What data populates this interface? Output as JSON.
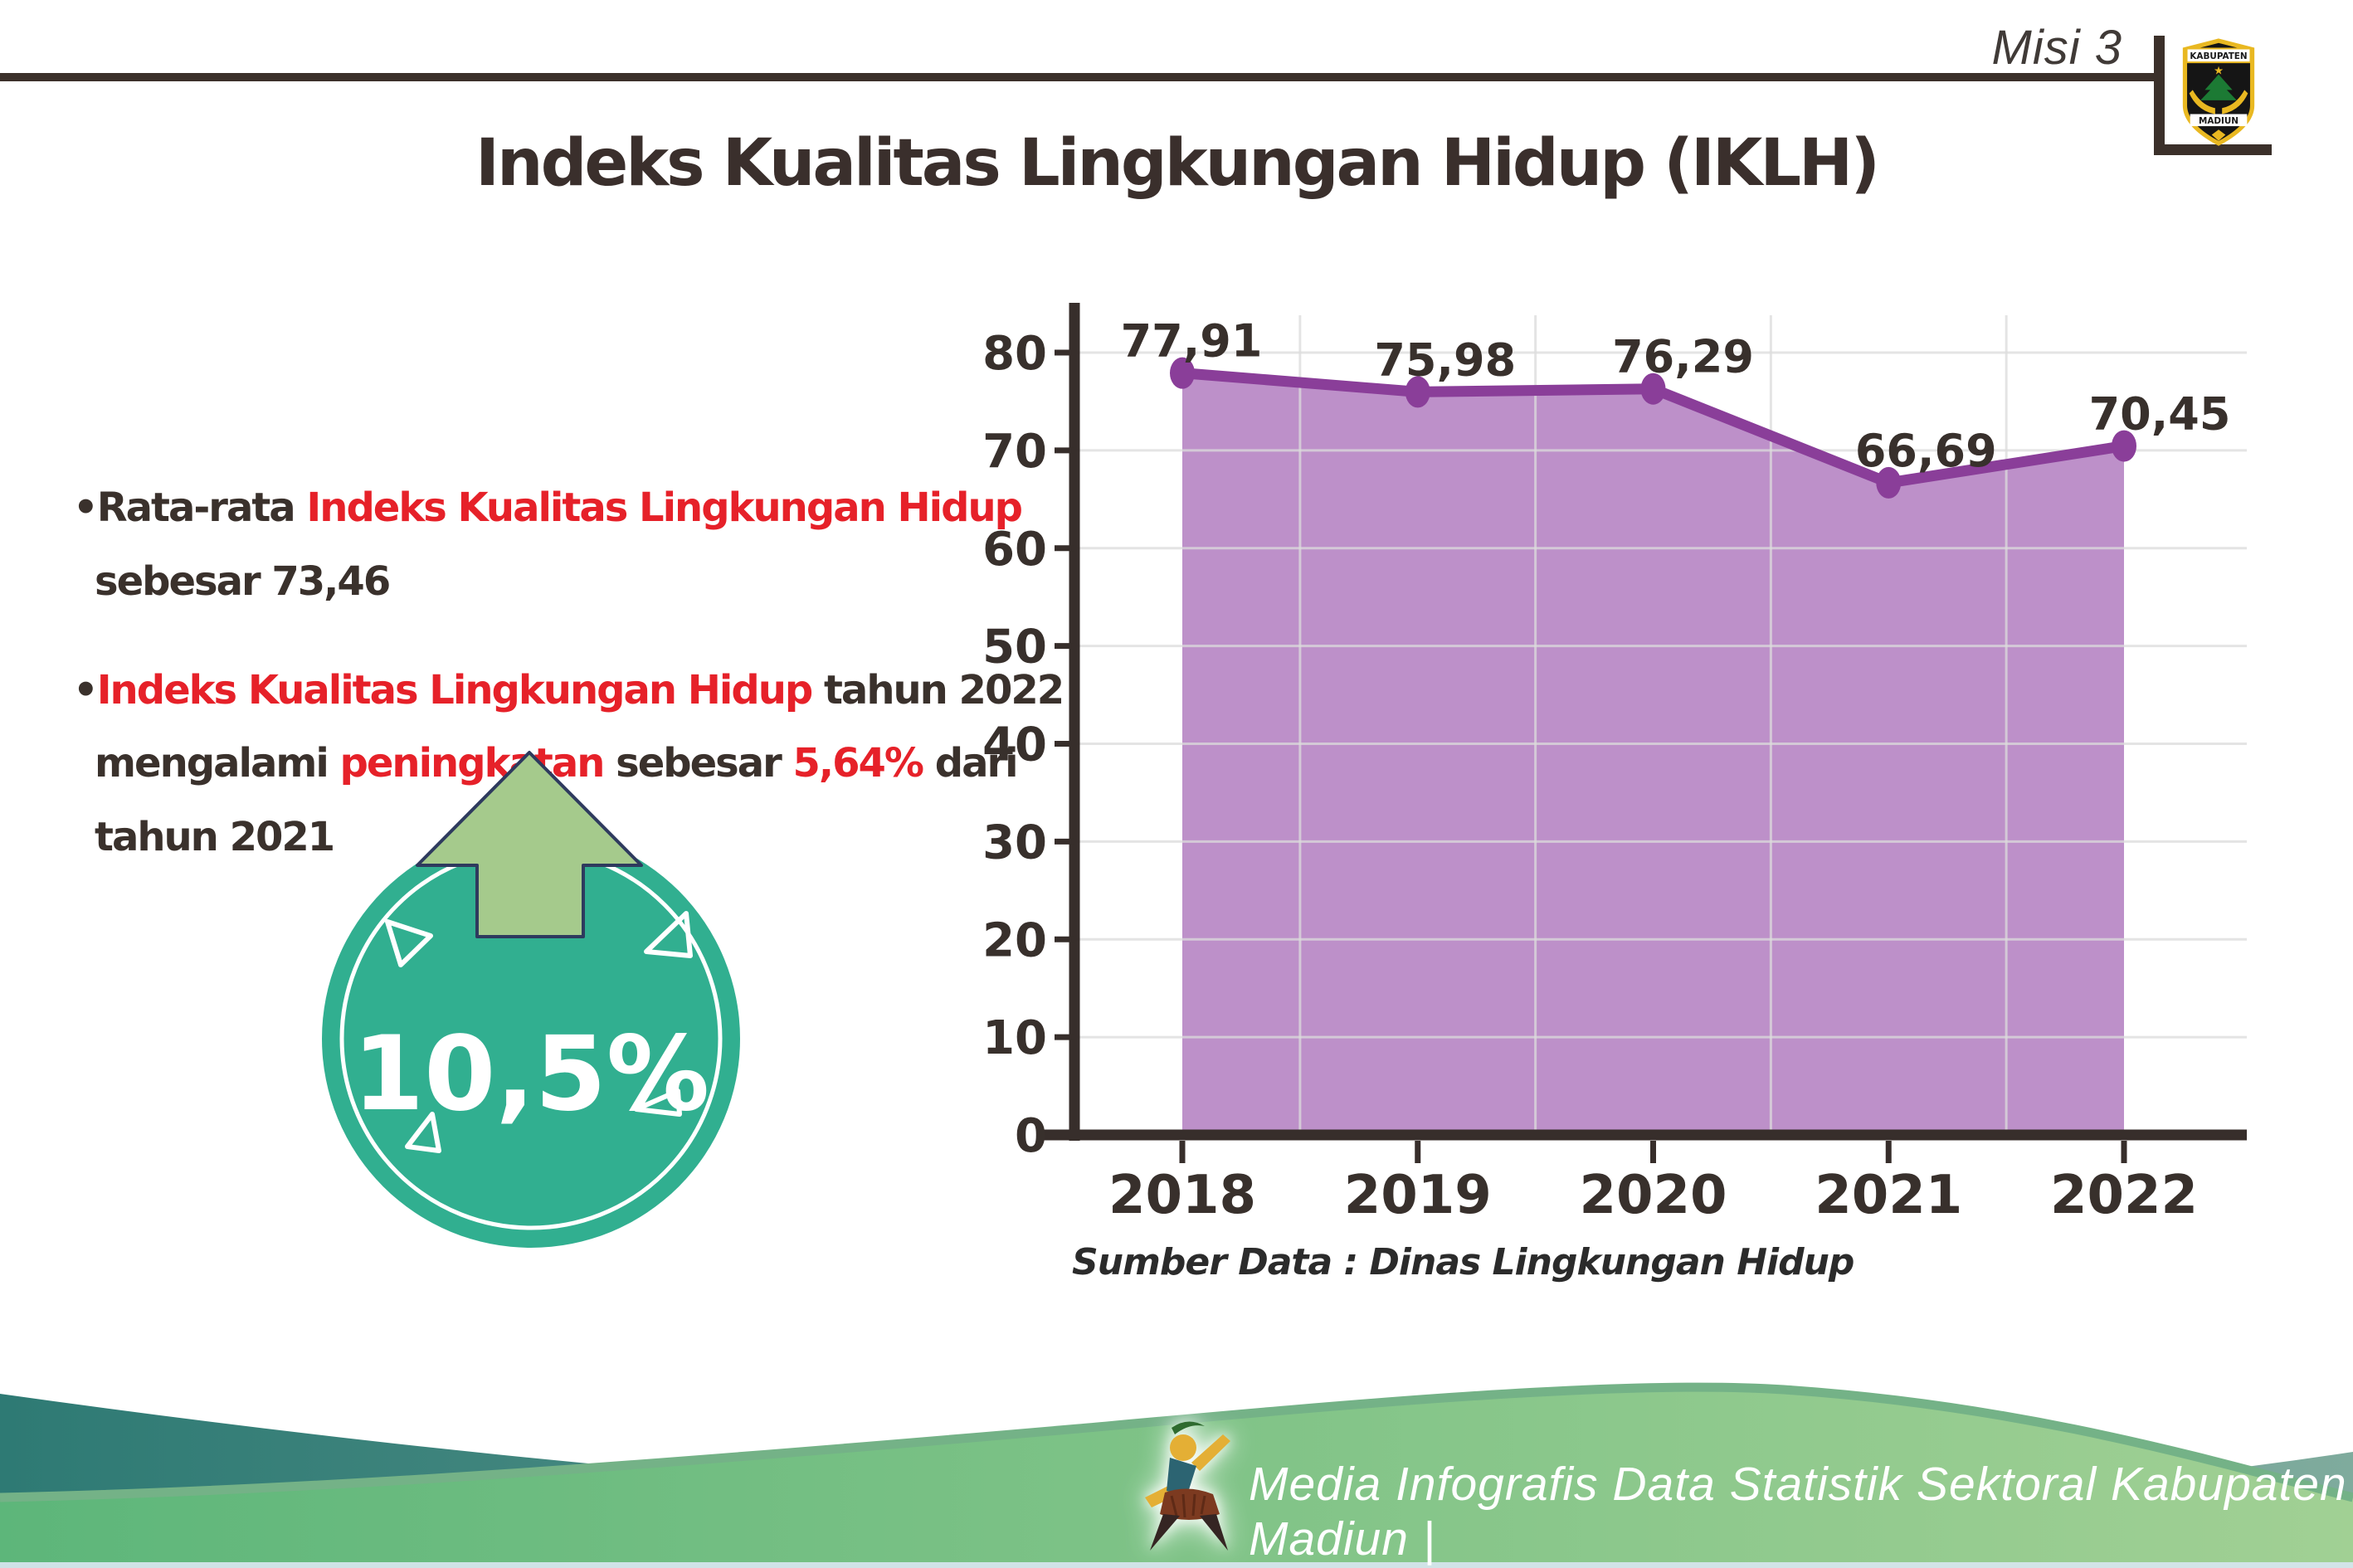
{
  "header": {
    "misi": "Misi 3",
    "logo_top": "KABUPATEN",
    "logo_bottom": "MADIUN"
  },
  "title": "Indeks Kualitas Lingkungan Hidup (IKLH)",
  "bullets": [
    {
      "lines": [
        [
          {
            "text": "Rata-rata ",
            "color": "ink"
          },
          {
            "text": "Indeks Kualitas Lingkungan Hidup",
            "color": "red"
          }
        ],
        [
          {
            "text": "sebesar 73,46",
            "color": "ink"
          }
        ]
      ]
    },
    {
      "lines": [
        [
          {
            "text": "Indeks Kualitas Lingkungan Hidup",
            "color": "red"
          },
          {
            "text": " tahun 2022",
            "color": "ink"
          }
        ],
        [
          {
            "text": "mengalami ",
            "color": "ink"
          },
          {
            "text": "peningkatan",
            "color": "red"
          },
          {
            "text": " sebesar ",
            "color": "ink"
          },
          {
            "text": "5,64%",
            "color": "red"
          },
          {
            "text": " dari",
            "color": "ink"
          }
        ],
        [
          {
            "text": "tahun 2021",
            "color": "ink"
          }
        ]
      ]
    }
  ],
  "badge": {
    "value": "10,5%",
    "direction": "up",
    "circle_color": "#31af90",
    "arrow_color": "#a5ca8c"
  },
  "chart_data": {
    "type": "area",
    "categories": [
      "2018",
      "2019",
      "2020",
      "2021",
      "2022"
    ],
    "values": [
      77.91,
      75.98,
      76.29,
      66.69,
      70.45
    ],
    "value_labels": [
      "77,91",
      "75,98",
      "76,29",
      "66,69",
      "70,45"
    ],
    "title": "",
    "xlabel": "",
    "ylabel": "",
    "ylim": [
      0,
      80
    ],
    "ytick_step": 10,
    "grid": true,
    "legend": "none",
    "line_color": "#8a3e99",
    "fill_color": "#bd90c9"
  },
  "source_note": "Sumber Data : Dinas Lingkungan Hidup",
  "footer": {
    "credit": "Media Infografis Data Statistik Sektoral Kabupaten Madiun |"
  },
  "colors": {
    "ink": "#3a312c",
    "accent_red": "#e62129",
    "teal_wave_dark": "#2e7a74",
    "teal_wave_light": "#7fab9d",
    "green_wave_dark": "#5db67a",
    "green_wave_light": "#a1d094"
  }
}
